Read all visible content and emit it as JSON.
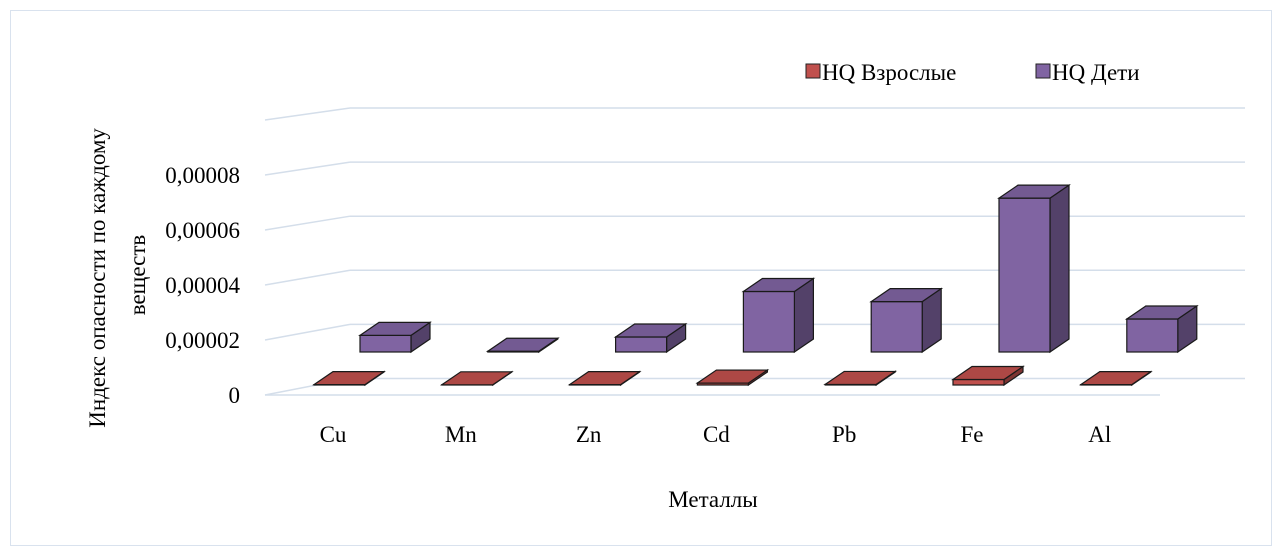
{
  "chart_data": {
    "type": "bar",
    "categories": [
      "Cu",
      "Mn",
      "Zn",
      "Cd",
      "Pb",
      "Fe",
      "Al"
    ],
    "series": [
      {
        "name": "HQ Взрослые",
        "color": "#c0504d",
        "values": [
          2e-07,
          1e-07,
          2e-07,
          1e-06,
          3e-07,
          2.8e-06,
          2e-07
        ]
      },
      {
        "name": "HQ Дети",
        "color": "#8064a2",
        "values": [
          8.5e-06,
          4e-07,
          7.7e-06,
          3.1e-05,
          2.58e-05,
          7.88e-05,
          1.69e-05
        ]
      }
    ],
    "y_ticks": [
      {
        "value": 0,
        "label": "0"
      },
      {
        "value": 2e-05,
        "label": "0,00002"
      },
      {
        "value": 4e-05,
        "label": "0,00004"
      },
      {
        "value": 6e-05,
        "label": "0,00006"
      },
      {
        "value": 8e-05,
        "label": "0,00008"
      }
    ],
    "ylim": [
      0,
      0.0001
    ],
    "xlabel": "Металлы",
    "ylabel_lines": [
      "Индекс опасности по каждому",
      "веществ"
    ],
    "legend_position": "top-right",
    "grid": true,
    "projection": "3d-column"
  }
}
